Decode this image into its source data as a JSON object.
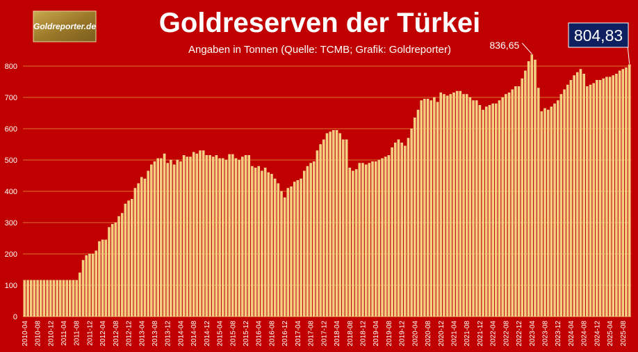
{
  "chart_data": {
    "type": "bar",
    "title": "Goldreserven der Türkei",
    "subtitle": "Angaben in Tonnen (Quelle: TCMB; Grafik: Goldreporter)",
    "logo": "Goldreporter.de",
    "color": "#f3cf7a",
    "grid": true,
    "ylim": [
      0,
      900
    ],
    "yticks": [
      0,
      100,
      200,
      300,
      400,
      500,
      600,
      700,
      800
    ],
    "categories": [
      "2010-04",
      null,
      null,
      null,
      "2010-08",
      null,
      null,
      null,
      "2010-12",
      null,
      null,
      null,
      "2011-04",
      null,
      null,
      null,
      "2011-08",
      null,
      null,
      null,
      "2011-12",
      null,
      null,
      null,
      "2012-04",
      null,
      null,
      null,
      "2012-08",
      null,
      null,
      null,
      "2012-12",
      null,
      null,
      null,
      "2013-04",
      null,
      null,
      null,
      "2013-08",
      null,
      null,
      null,
      "2013-12",
      null,
      null,
      null,
      "2014-04",
      null,
      null,
      null,
      "2014-08",
      null,
      null,
      null,
      "2014-12",
      null,
      null,
      null,
      "2015-04",
      null,
      null,
      null,
      "2015-08",
      null,
      null,
      null,
      "2015-12",
      null,
      null,
      null,
      "2016-04",
      null,
      null,
      null,
      "2016-08",
      null,
      null,
      null,
      "2016-12",
      null,
      null,
      null,
      "2017-04",
      null,
      null,
      null,
      "2017-08",
      null,
      null,
      null,
      "2017-12",
      null,
      null,
      null,
      "2018-04",
      null,
      null,
      null,
      "2018-08",
      null,
      null,
      null,
      "2018-12",
      null,
      null,
      null,
      "2019-04",
      null,
      null,
      null,
      "2019-08",
      null,
      null,
      null,
      "2019-12",
      null,
      null,
      null,
      "2020-04",
      null,
      null,
      null,
      "2020-08",
      null,
      null,
      null,
      "2020-12",
      null,
      null,
      null,
      "2021-04",
      null,
      null,
      null,
      "2021-08",
      null,
      null,
      null,
      "2021-12",
      null,
      null,
      null,
      "2022-04",
      null,
      null,
      null,
      "2022-08",
      null,
      null,
      null,
      "2022-12",
      null,
      null,
      null,
      "2023-04",
      null,
      null,
      null,
      "2023-08",
      null,
      null,
      null,
      "2023-12",
      null,
      null,
      null,
      "2024-04",
      null,
      null,
      null,
      "2024-08",
      null,
      null,
      null,
      "2024-12",
      null,
      null,
      null,
      "2025-04",
      null,
      null,
      null,
      "2025-08",
      null,
      null
    ],
    "values": [
      116,
      116,
      116,
      116,
      116,
      116,
      116,
      116,
      116,
      116,
      116,
      116,
      116,
      116,
      116,
      116,
      116,
      140,
      180,
      195,
      200,
      200,
      210,
      240,
      245,
      245,
      285,
      295,
      300,
      320,
      330,
      360,
      370,
      375,
      410,
      425,
      445,
      440,
      465,
      485,
      495,
      505,
      505,
      520,
      490,
      500,
      485,
      500,
      495,
      515,
      510,
      510,
      525,
      520,
      530,
      530,
      515,
      515,
      510,
      515,
      505,
      505,
      500,
      518,
      518,
      505,
      500,
      510,
      515,
      515,
      480,
      475,
      480,
      465,
      475,
      460,
      455,
      440,
      425,
      400,
      380,
      410,
      415,
      430,
      435,
      440,
      465,
      480,
      490,
      495,
      530,
      550,
      565,
      585,
      590,
      595,
      595,
      585,
      565,
      565,
      475,
      465,
      470,
      490,
      490,
      485,
      490,
      495,
      495,
      500,
      505,
      510,
      515,
      540,
      555,
      565,
      555,
      545,
      570,
      600,
      635,
      660,
      690,
      695,
      695,
      690,
      700,
      685,
      715,
      710,
      705,
      710,
      715,
      720,
      720,
      710,
      710,
      700,
      690,
      690,
      675,
      660,
      670,
      675,
      680,
      680,
      690,
      700,
      710,
      715,
      725,
      735,
      735,
      760,
      785,
      815,
      836.65,
      820,
      730,
      655,
      665,
      660,
      670,
      680,
      690,
      710,
      725,
      740,
      755,
      770,
      780,
      790,
      775,
      735,
      740,
      745,
      755,
      755,
      760,
      765,
      765,
      770,
      775,
      785,
      790,
      795,
      804.83
    ],
    "value_labels": [
      null,
      null,
      null,
      null,
      null,
      null,
      null,
      null,
      null,
      null,
      null,
      null,
      null,
      null,
      null,
      null,
      null,
      null,
      null,
      null,
      null,
      null,
      null,
      null,
      null,
      null,
      null,
      null,
      null,
      null,
      null,
      null,
      null,
      null,
      null,
      null,
      null,
      null,
      null,
      null,
      null,
      null,
      null,
      null,
      null,
      null,
      null,
      null,
      null,
      null,
      null,
      null,
      null,
      null,
      null,
      null,
      null,
      null,
      null,
      null,
      null,
      null,
      null,
      null,
      null,
      null,
      null,
      null,
      null,
      null,
      null,
      null,
      null,
      null,
      null,
      null,
      null,
      null,
      null,
      null,
      null,
      null,
      null,
      null,
      null,
      null,
      null,
      null,
      null,
      null,
      null,
      null,
      null,
      null,
      null,
      null,
      null,
      null,
      null,
      null,
      null,
      null,
      null,
      null,
      null,
      null,
      null,
      null,
      null,
      null,
      null,
      null,
      null,
      null,
      null,
      null,
      null,
      null,
      null,
      null,
      null,
      null,
      null,
      null,
      null,
      null,
      null,
      null,
      null,
      null,
      null,
      null,
      null,
      null,
      null,
      null,
      null,
      null,
      null,
      null,
      null,
      null,
      null,
      null,
      null,
      null,
      null,
      null,
      null,
      null,
      null,
      null,
      null,
      null,
      null,
      null,
      "836,65",
      null,
      null,
      null,
      null,
      null,
      null,
      null,
      null,
      null,
      null,
      null,
      null,
      null,
      null,
      null,
      null,
      null,
      null,
      null,
      null,
      null,
      null,
      null,
      null,
      null,
      null,
      null,
      null,
      null,
      "804,83"
    ]
  }
}
